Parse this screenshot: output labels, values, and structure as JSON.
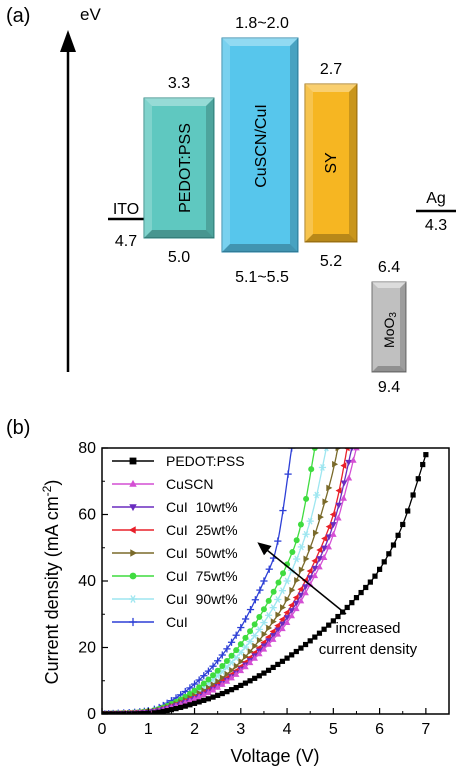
{
  "panel_a": {
    "panel_label": "(a)",
    "axis_label": "eV",
    "levels": [
      {
        "name": "ITO",
        "type": "line",
        "top": "",
        "bottom": "4.7"
      },
      {
        "name": "PEDOT:PSS",
        "type": "box",
        "top": "3.3",
        "bottom": "5.0",
        "color": "#5fc8c0"
      },
      {
        "name": "CuSCN/CuI",
        "type": "box",
        "top": "1.8~2.0",
        "bottom": "5.1~5.5",
        "color": "#57c6ec"
      },
      {
        "name": "SY",
        "type": "box",
        "top": "2.7",
        "bottom": "5.2",
        "color": "#f6b622"
      },
      {
        "name": "MoO3",
        "name_base": "MoO",
        "name_sub": "3",
        "type": "box",
        "top": "6.4",
        "bottom": "9.4",
        "color": "#c0c0c0"
      },
      {
        "name": "Ag",
        "type": "line",
        "top": "",
        "bottom": "4.3"
      }
    ]
  },
  "panel_b": {
    "panel_label": "(b)",
    "annotation": [
      "increased",
      "current density"
    ]
  },
  "chart_data": {
    "type": "line",
    "xlabel": "Voltage (V)",
    "ylabel": "Current density (mA cm",
    "ylabel_sup": "-2",
    "ylabel_end": ")",
    "xlim": [
      0,
      7.5
    ],
    "ylim": [
      0,
      80
    ],
    "xticks": [
      0,
      1,
      2,
      3,
      4,
      5,
      6,
      7
    ],
    "yticks": [
      0,
      20,
      40,
      60,
      80
    ],
    "legend_position": "top-left",
    "series": [
      {
        "name": "PEDOT:PSS",
        "color": "#000000",
        "marker": "square",
        "points": [
          [
            0,
            0
          ],
          [
            1.0,
            0.2
          ],
          [
            1.5,
            1.3
          ],
          [
            2.0,
            3.2
          ],
          [
            2.5,
            5.6
          ],
          [
            3.0,
            8.6
          ],
          [
            3.5,
            12.3
          ],
          [
            4.0,
            16.8
          ],
          [
            4.5,
            22.0
          ],
          [
            5.0,
            28.0
          ],
          [
            5.5,
            35.0
          ],
          [
            6.0,
            43.5
          ],
          [
            6.5,
            57.0
          ],
          [
            7.0,
            78.0
          ]
        ]
      },
      {
        "name": "CuSCN",
        "color": "#d44fd4",
        "marker": "triangle-up",
        "points": [
          [
            0,
            0
          ],
          [
            1.0,
            0.5
          ],
          [
            1.5,
            2.0
          ],
          [
            2.0,
            4.5
          ],
          [
            2.5,
            8.0
          ],
          [
            3.0,
            13.0
          ],
          [
            3.5,
            19.5
          ],
          [
            4.0,
            27.5
          ],
          [
            4.5,
            39.0
          ],
          [
            5.0,
            54.0
          ],
          [
            5.5,
            80.0
          ]
        ]
      },
      {
        "name": "CuI  10wt%",
        "color": "#6a2cbf",
        "marker": "triangle-down",
        "points": [
          [
            0,
            0
          ],
          [
            1.0,
            0.5
          ],
          [
            1.5,
            2.1
          ],
          [
            2.0,
            4.7
          ],
          [
            2.5,
            8.3
          ],
          [
            3.0,
            13.5
          ],
          [
            3.5,
            20.5
          ],
          [
            4.0,
            29.0
          ],
          [
            4.5,
            41.0
          ],
          [
            5.0,
            57.0
          ],
          [
            5.4,
            80.0
          ]
        ]
      },
      {
        "name": "CuI  25wt%",
        "color": "#e8202a",
        "marker": "triangle-left",
        "points": [
          [
            0,
            0
          ],
          [
            1.0,
            0.6
          ],
          [
            1.5,
            2.3
          ],
          [
            2.0,
            5.0
          ],
          [
            2.5,
            8.8
          ],
          [
            3.0,
            14.2
          ],
          [
            3.5,
            21.5
          ],
          [
            4.0,
            30.5
          ],
          [
            4.5,
            43.0
          ],
          [
            5.0,
            60.0
          ],
          [
            5.3,
            80.0
          ]
        ]
      },
      {
        "name": "CuI  50wt%",
        "color": "#7a6a2a",
        "marker": "triangle-right",
        "points": [
          [
            0,
            0
          ],
          [
            1.0,
            0.6
          ],
          [
            1.5,
            2.5
          ],
          [
            2.0,
            5.5
          ],
          [
            2.5,
            9.8
          ],
          [
            3.0,
            15.8
          ],
          [
            3.5,
            24.0
          ],
          [
            4.0,
            34.5
          ],
          [
            4.5,
            50.0
          ],
          [
            4.9,
            68.0
          ],
          [
            5.1,
            80.0
          ]
        ]
      },
      {
        "name": "CuI  75wt%",
        "color": "#3fdc3f",
        "marker": "circle",
        "points": [
          [
            0,
            0
          ],
          [
            1.0,
            0.8
          ],
          [
            1.5,
            3.0
          ],
          [
            2.0,
            7.0
          ],
          [
            2.5,
            13.0
          ],
          [
            3.0,
            21.0
          ],
          [
            3.5,
            31.5
          ],
          [
            4.0,
            45.0
          ],
          [
            4.3,
            57.0
          ],
          [
            4.6,
            80.0
          ]
        ]
      },
      {
        "name": "CuI  90wt%",
        "color": "#9ee6f0",
        "marker": "star",
        "points": [
          [
            0,
            0
          ],
          [
            1.0,
            0.7
          ],
          [
            1.5,
            2.8
          ],
          [
            2.0,
            6.3
          ],
          [
            2.5,
            11.5
          ],
          [
            3.0,
            18.5
          ],
          [
            3.5,
            27.5
          ],
          [
            4.0,
            40.0
          ],
          [
            4.5,
            58.0
          ],
          [
            4.85,
            80.0
          ]
        ]
      },
      {
        "name": "CuI",
        "color": "#2d3fd6",
        "marker": "plus",
        "points": [
          [
            0,
            0
          ],
          [
            1.0,
            1.0
          ],
          [
            1.5,
            4.0
          ],
          [
            2.0,
            9.0
          ],
          [
            2.5,
            16.0
          ],
          [
            3.0,
            26.0
          ],
          [
            3.5,
            40.0
          ],
          [
            3.8,
            52.0
          ],
          [
            4.1,
            80.0
          ]
        ]
      }
    ]
  }
}
